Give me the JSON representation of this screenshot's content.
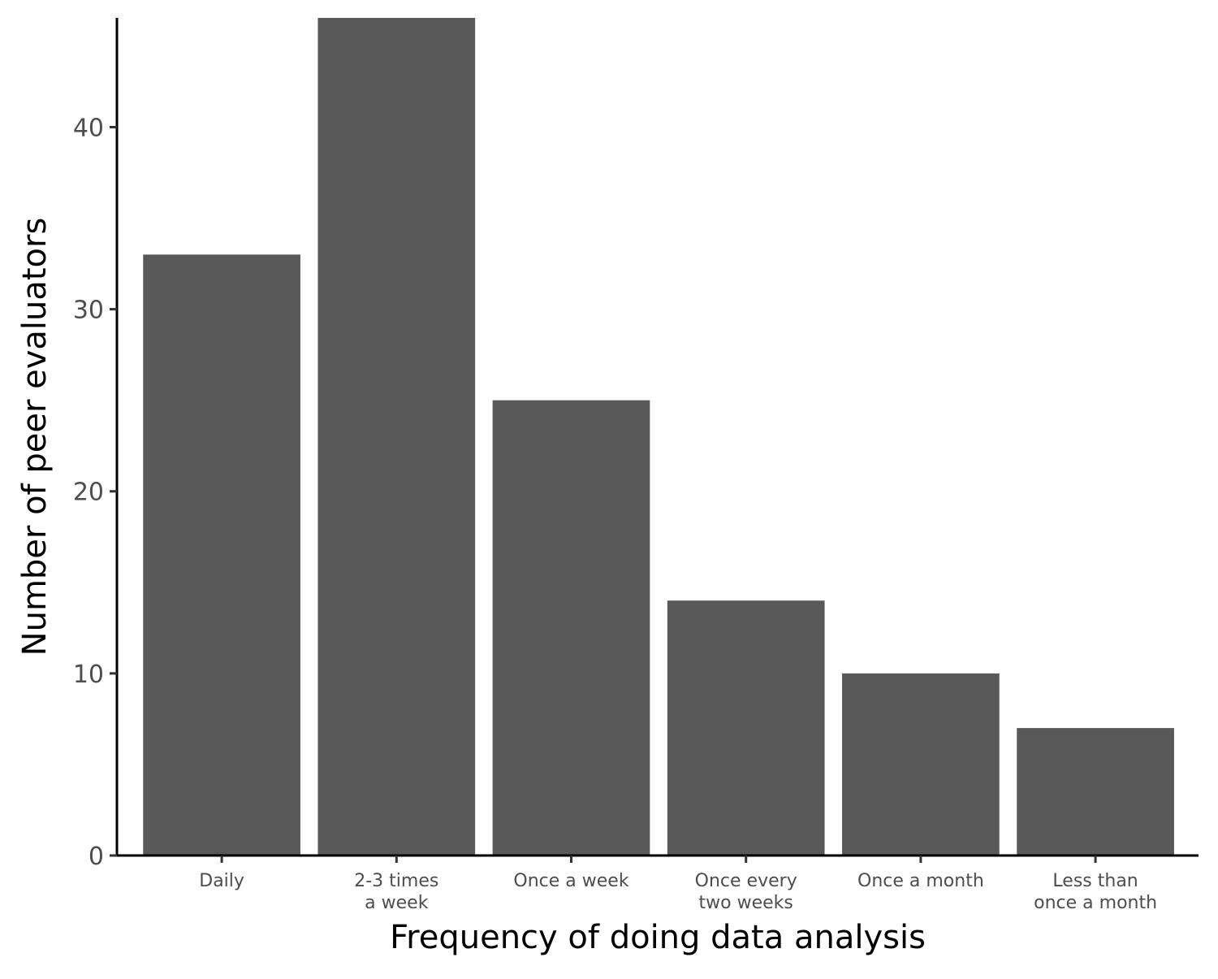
{
  "chart_data": {
    "type": "bar",
    "title": "",
    "xlabel": "Frequency of doing data analysis",
    "ylabel": "Number of peer evaluators",
    "categories": [
      [
        "Daily"
      ],
      [
        "2-3 times",
        "a week"
      ],
      [
        "Once a week"
      ],
      [
        "Once every",
        "two weeks"
      ],
      [
        "Once a month"
      ],
      [
        "Less than",
        "once a month"
      ]
    ],
    "values": [
      33,
      46,
      25,
      14,
      10,
      7
    ],
    "ylim": [
      0,
      46
    ],
    "yticks": [
      0,
      10,
      20,
      30,
      40
    ],
    "ytick_labels": [
      "0",
      "10",
      "20",
      "30",
      "40"
    ],
    "grid": false,
    "legend": "none",
    "colors": {
      "bar": "#595959",
      "axis": "#000000",
      "tick_label": "#4d4d4d"
    }
  }
}
